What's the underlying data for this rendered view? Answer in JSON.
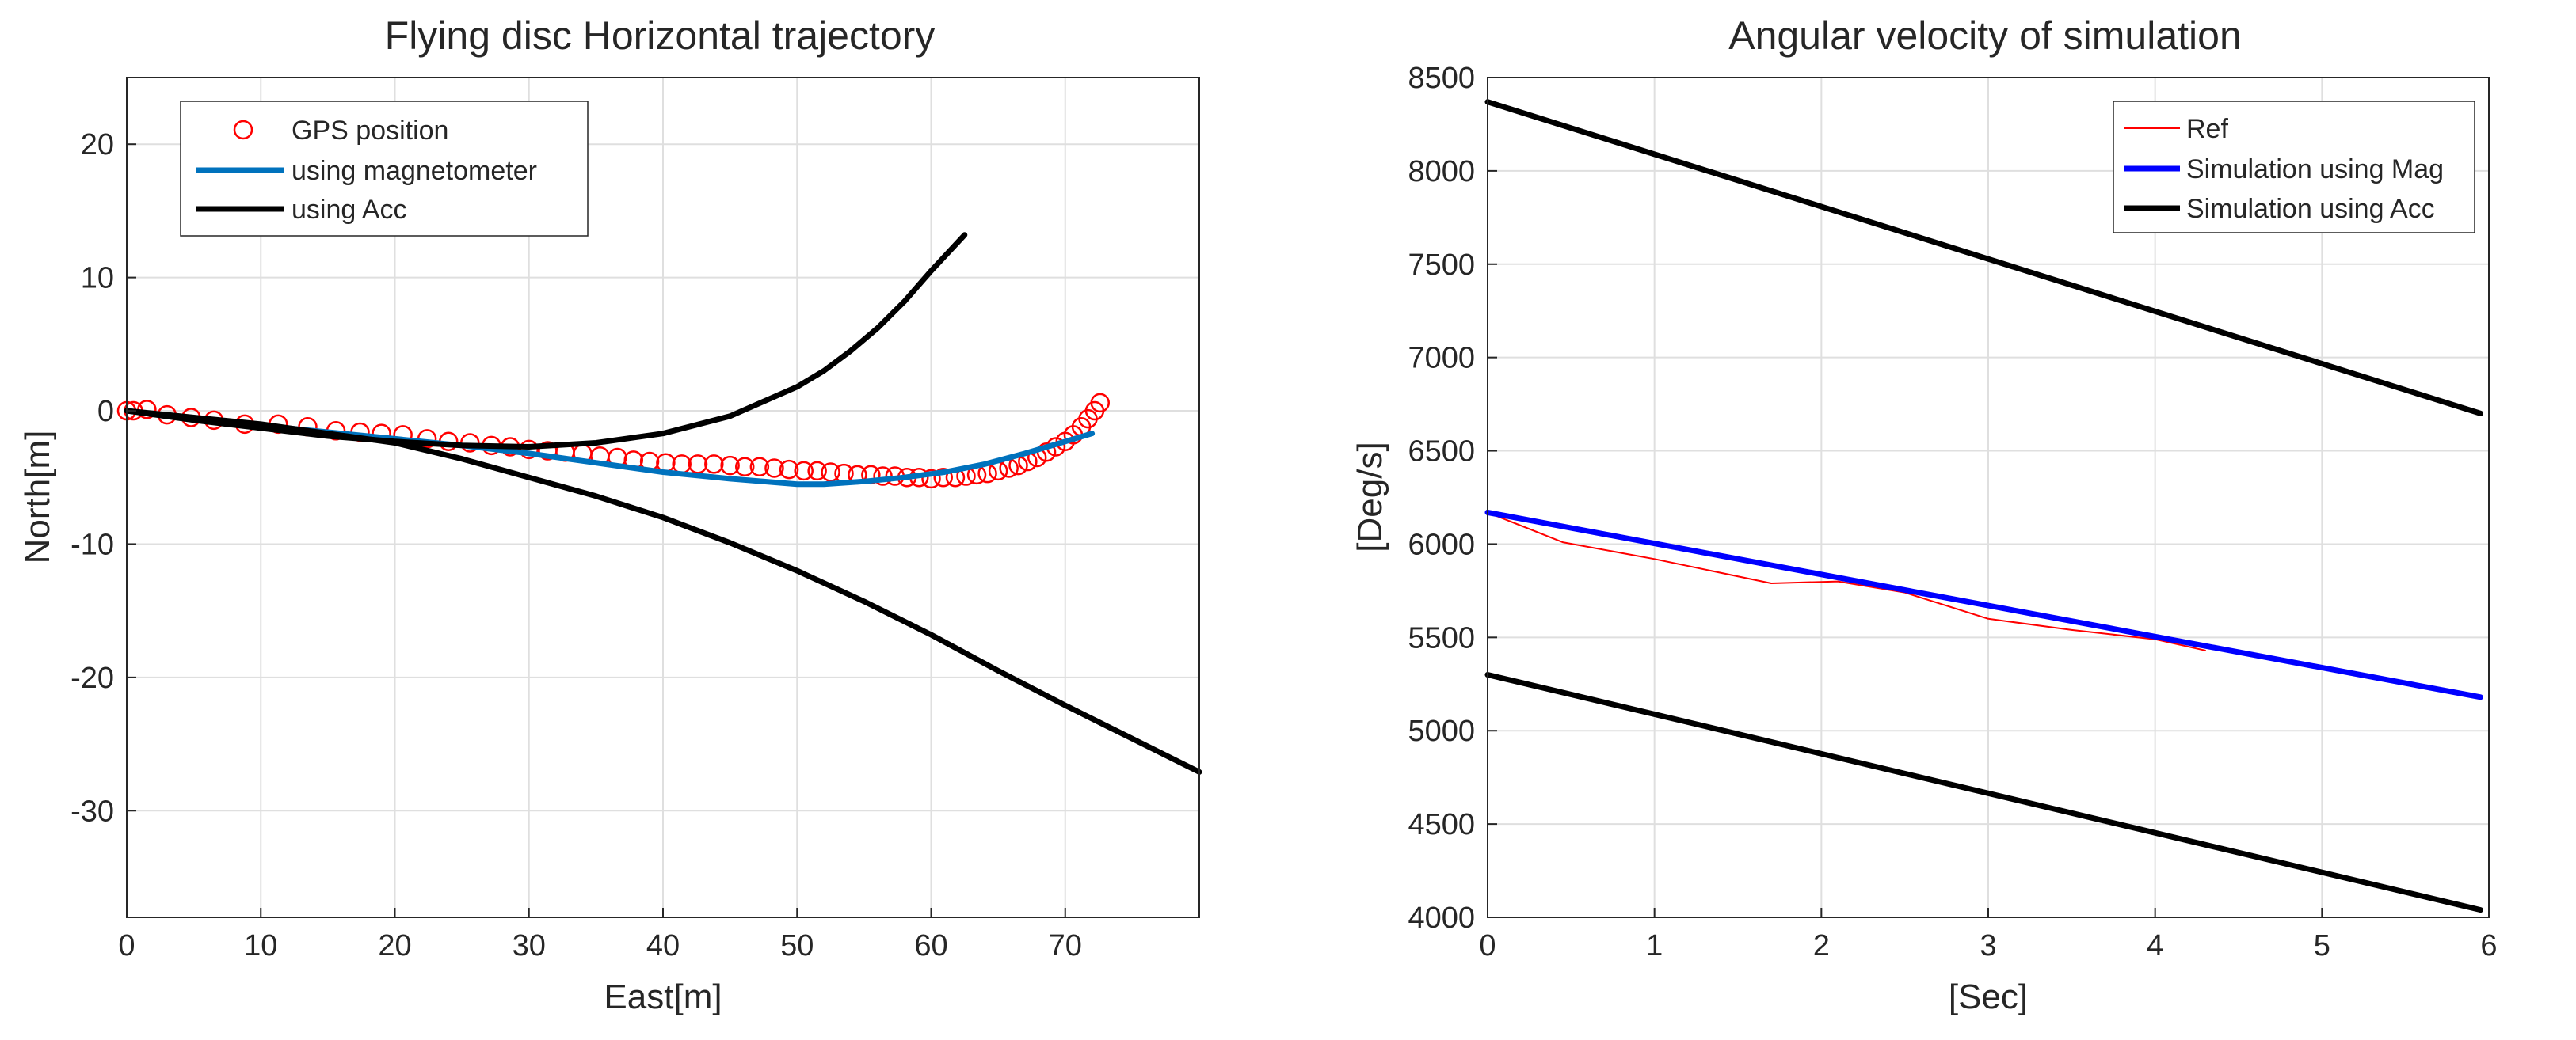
{
  "chart_data": [
    {
      "type": "line",
      "title": "Flying disc Horizontal trajectory",
      "xlabel": "East[m]",
      "ylabel": "North[m]",
      "xlim": [
        0,
        80
      ],
      "ylim": [
        -38,
        25
      ],
      "xticks": [
        0,
        10,
        20,
        30,
        40,
        50,
        60,
        70
      ],
      "yticks": [
        -30,
        -20,
        -10,
        0,
        10,
        20
      ],
      "grid": true,
      "legend": {
        "position": "top-left",
        "entries": [
          "GPS position",
          "using magnetometer",
          "using Acc"
        ]
      },
      "series": [
        {
          "name": "GPS position",
          "style": "markers",
          "color": "#ff0000",
          "x": [
            0,
            0.5,
            1.5,
            3,
            4.8,
            6.5,
            8.8,
            11.3,
            13.5,
            15.6,
            17.4,
            19,
            20.6,
            22.4,
            24,
            25.6,
            27.2,
            28.6,
            30,
            31.4,
            32.7,
            34,
            35.3,
            36.6,
            37.8,
            39,
            40.2,
            41.4,
            42.6,
            43.8,
            45,
            46.1,
            47.2,
            48.3,
            49.4,
            50.5,
            51.5,
            52.5,
            53.5,
            54.5,
            55.5,
            56.4,
            57.3,
            58.2,
            59.1,
            60,
            60.9,
            61.8,
            62.6,
            63.4,
            64.2,
            65,
            65.8,
            66.5,
            67.2,
            67.9,
            68.6,
            69.3,
            70,
            70.6,
            71.2,
            71.7,
            72.2,
            72.6
          ],
          "y": [
            0,
            0,
            0.1,
            -0.3,
            -0.5,
            -0.7,
            -1.0,
            -1.0,
            -1.2,
            -1.5,
            -1.6,
            -1.7,
            -1.8,
            -2.1,
            -2.3,
            -2.4,
            -2.6,
            -2.7,
            -2.9,
            -3.0,
            -3.1,
            -3.2,
            -3.4,
            -3.5,
            -3.7,
            -3.8,
            -3.9,
            -4.0,
            -4.0,
            -4.0,
            -4.1,
            -4.2,
            -4.2,
            -4.3,
            -4.4,
            -4.5,
            -4.5,
            -4.6,
            -4.7,
            -4.8,
            -4.8,
            -4.9,
            -4.9,
            -5.0,
            -5.0,
            -5.1,
            -5.0,
            -5.0,
            -4.9,
            -4.8,
            -4.7,
            -4.5,
            -4.3,
            -4.1,
            -3.8,
            -3.5,
            -3.1,
            -2.7,
            -2.3,
            -1.8,
            -1.2,
            -0.6,
            0.0,
            0.6
          ]
        },
        {
          "name": "using magnetometer",
          "style": "line",
          "color": "#0072bd",
          "x": [
            0,
            5,
            10,
            15,
            20,
            25,
            30,
            35,
            40,
            45,
            50,
            52,
            55,
            58,
            61,
            64,
            67,
            70,
            72
          ],
          "y": [
            0,
            -0.6,
            -1.1,
            -1.6,
            -2.1,
            -2.6,
            -3.2,
            -3.9,
            -4.6,
            -5.1,
            -5.5,
            -5.5,
            -5.3,
            -5.0,
            -4.6,
            -4.0,
            -3.2,
            -2.3,
            -1.7
          ]
        },
        {
          "name": "using Acc",
          "style": "line",
          "color": "#000000",
          "x": [
            0,
            5,
            10,
            15,
            20,
            25,
            30,
            35,
            40,
            45,
            50,
            52,
            54,
            56,
            58,
            60,
            62.5
          ],
          "y": [
            0,
            -0.7,
            -1.3,
            -1.9,
            -2.3,
            -2.6,
            -2.7,
            -2.4,
            -1.7,
            -0.4,
            1.8,
            3.0,
            4.5,
            6.2,
            8.2,
            10.5,
            13.2
          ]
        },
        {
          "name": "using Acc (branch 2)",
          "style": "line",
          "color": "#000000",
          "x": [
            0,
            10,
            20,
            25,
            30,
            35,
            40,
            45,
            50,
            55,
            60,
            65,
            70,
            75,
            80
          ],
          "y": [
            0,
            -1.0,
            -2.4,
            -3.6,
            -5.0,
            -6.4,
            -8.0,
            -9.9,
            -12.0,
            -14.3,
            -16.8,
            -19.5,
            -22.1,
            -24.6,
            -27.1
          ]
        }
      ]
    },
    {
      "type": "line",
      "title": "Angular velocity of simulation",
      "xlabel": "[Sec]",
      "ylabel": "[Deg/s]",
      "xlim": [
        0,
        6
      ],
      "ylim": [
        4000,
        8500
      ],
      "xticks": [
        0,
        1,
        2,
        3,
        4,
        5,
        6
      ],
      "yticks": [
        4000,
        4500,
        5000,
        5500,
        6000,
        6500,
        7000,
        7500,
        8000,
        8500
      ],
      "grid": true,
      "legend": {
        "position": "top-right",
        "entries": [
          "Ref",
          "Simulation using Mag",
          "Simulation using Acc"
        ]
      },
      "series": [
        {
          "name": "Ref",
          "style": "thin-line",
          "color": "#ff0000",
          "x": [
            0,
            0.45,
            1.0,
            1.7,
            2.1,
            2.5,
            3.0,
            3.5,
            4.0,
            4.3
          ],
          "y": [
            6170,
            6010,
            5920,
            5790,
            5800,
            5740,
            5600,
            5540,
            5490,
            5430
          ]
        },
        {
          "name": "Simulation using Mag",
          "style": "line",
          "color": "#0000ff",
          "x": [
            0,
            5.95
          ],
          "y": [
            6170,
            5180
          ]
        },
        {
          "name": "Simulation using Acc",
          "style": "line",
          "color": "#000000",
          "x": [
            0,
            5.95
          ],
          "y": [
            8370,
            6700
          ]
        },
        {
          "name": "Simulation using Acc (lower)",
          "style": "line",
          "color": "#000000",
          "x": [
            0,
            5.95
          ],
          "y": [
            5300,
            4040
          ]
        }
      ]
    }
  ]
}
